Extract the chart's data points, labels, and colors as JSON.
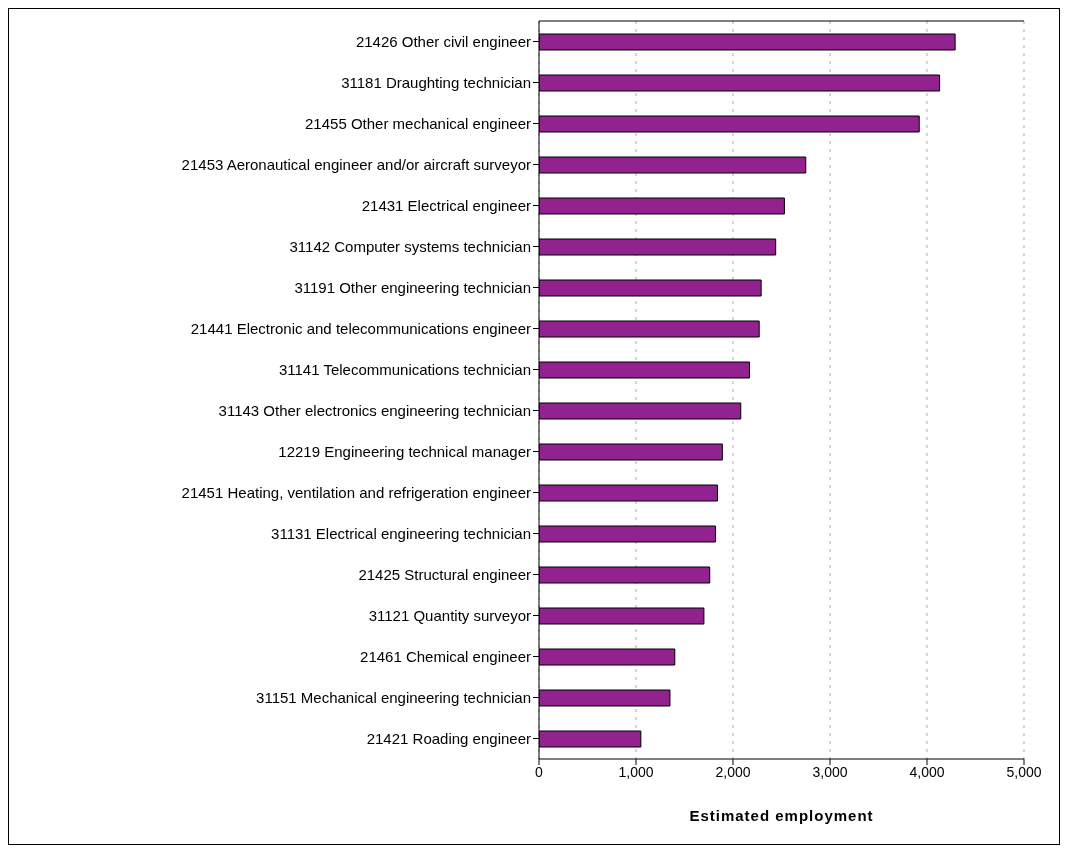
{
  "chart_data": {
    "type": "bar",
    "orientation": "horizontal",
    "xlabel": "Estimated employment",
    "categories": [
      "21426 Other civil engineer",
      "31181 Draughting technician",
      "21455 Other mechanical engineer",
      "21453 Aeronautical engineer and/or aircraft surveyor",
      "21431 Electrical engineer",
      "31142 Computer systems technician",
      "31191 Other engineering technician",
      "21441 Electronic and telecommunications engineer",
      "31141 Telecommunications technician",
      "31143 Other electronics engineering technician",
      "12219 Engineering technical manager",
      "21451 Heating, ventilation and refrigeration engineer",
      "31131 Electrical engineering technician",
      "21425 Structural engineer",
      "31121 Quantity surveyor",
      "21461 Chemical engineer",
      "31151 Mechanical engineering technician",
      "21421 Roading engineer"
    ],
    "values": [
      4290,
      4130,
      3920,
      2750,
      2530,
      2440,
      2290,
      2270,
      2170,
      2080,
      1890,
      1840,
      1820,
      1760,
      1700,
      1400,
      1350,
      1050
    ],
    "color": "#912290",
    "xlim": [
      0,
      5000
    ],
    "xticks": [
      {
        "value": 0,
        "label": "0"
      },
      {
        "value": 1000,
        "label": "1,000"
      },
      {
        "value": 2000,
        "label": "2,000"
      },
      {
        "value": 3000,
        "label": "3,000"
      },
      {
        "value": 4000,
        "label": "4,000"
      },
      {
        "value": 5000,
        "label": "5,000"
      }
    ],
    "grid": "x"
  }
}
